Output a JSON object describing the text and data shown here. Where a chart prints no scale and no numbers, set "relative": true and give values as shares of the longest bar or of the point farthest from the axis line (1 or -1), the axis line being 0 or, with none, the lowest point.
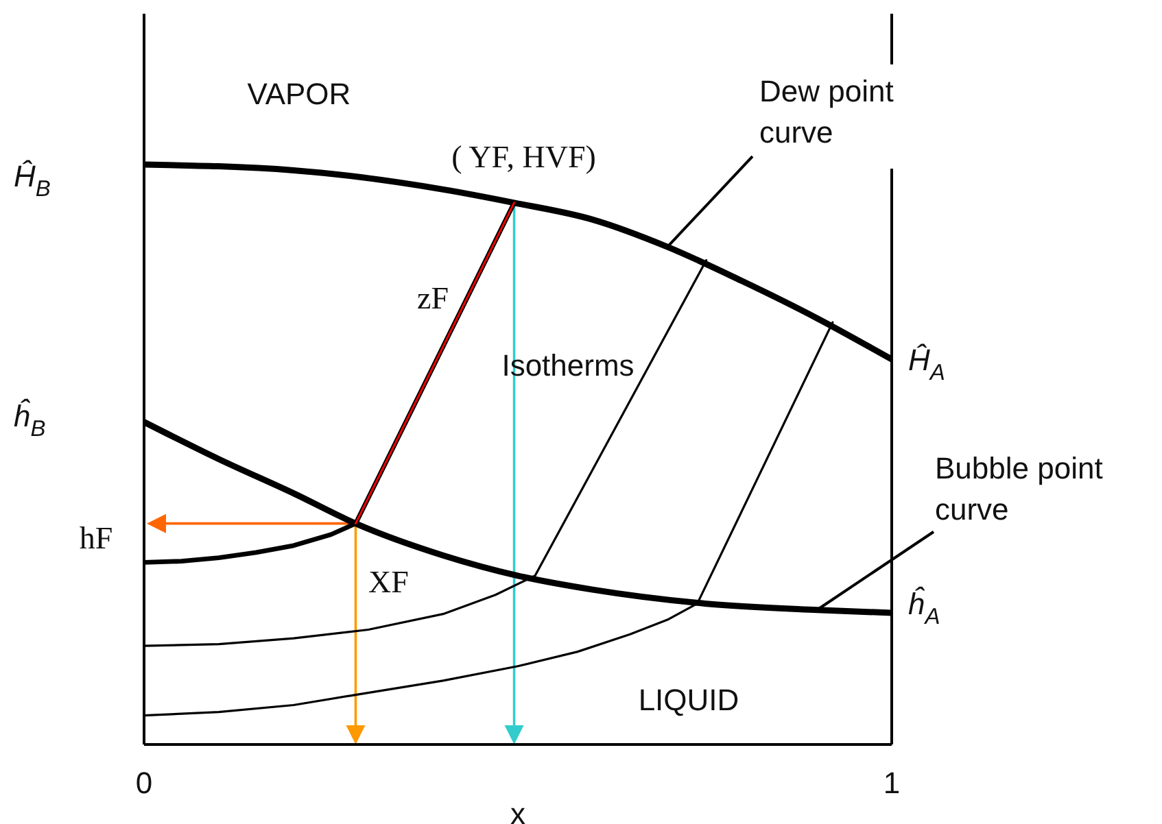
{
  "chart_data": {
    "type": "line",
    "relative": true,
    "xlabel": "x",
    "xlim": [
      0,
      1
    ],
    "xticks": [
      0,
      1
    ],
    "grid": false,
    "legend": false,
    "marker": "none",
    "line_style": "solid",
    "series": [
      {
        "color": "#000000",
        "x": [
          0,
          0.2,
          0.4,
          0.495,
          0.6,
          0.7,
          0.8,
          0.9,
          1
        ],
        "values": [
          1.0,
          0.99,
          0.957,
          0.934,
          0.905,
          0.858,
          0.799,
          0.735,
          0.664
        ]
      },
      {
        "color": "#000000",
        "x": [
          0,
          0.1,
          0.2,
          0.283,
          0.4,
          0.5,
          0.6,
          0.75,
          0.9,
          1
        ],
        "values": [
          0.556,
          0.492,
          0.433,
          0.381,
          0.326,
          0.291,
          0.267,
          0.243,
          0.232,
          0.227
        ]
      },
      {
        "color": "#000000",
        "x": [
          0,
          0.05,
          0.1,
          0.15,
          0.2,
          0.25,
          0.283,
          0.495
        ],
        "values": [
          0.314,
          0.316,
          0.322,
          0.331,
          0.343,
          0.362,
          0.381,
          0.934
        ]
      },
      {
        "color": "#000000",
        "x": [
          0,
          0.1,
          0.2,
          0.3,
          0.4,
          0.47,
          0.523,
          0.752
        ],
        "values": [
          0.17,
          0.173,
          0.183,
          0.198,
          0.225,
          0.258,
          0.291,
          0.835
        ]
      },
      {
        "color": "#000000",
        "x": [
          0,
          0.1,
          0.2,
          0.28,
          0.4,
          0.5,
          0.58,
          0.65,
          0.7,
          0.74,
          0.921
        ],
        "values": [
          0.05,
          0.056,
          0.068,
          0.085,
          0.11,
          0.135,
          0.16,
          0.19,
          0.215,
          0.243,
          0.728
        ]
      },
      {
        "color": "#ff0000",
        "x": [
          0.283,
          0.495
        ],
        "values": [
          0.381,
          0.934
        ]
      }
    ],
    "annotations": [
      "VAPOR",
      "LIQUID",
      "Isotherms",
      {
        "text": "Dew point curve",
        "x": 0.7,
        "y": 0.858
      },
      {
        "text": "Bubble point curve",
        "x": 0.9,
        "y": 0.232
      },
      {
        "text": "( YF,  HVF)",
        "x": 0.495,
        "y": 0.934
      },
      {
        "text": "zF",
        "x": 0.39,
        "y": 0.66
      },
      "hF",
      {
        "text": "XF",
        "x": 0.283,
        "y": 0.381
      },
      "Ĥ$_{B}$",
      "ĥ$_{B}$",
      {
        "text": "Ĥ$_{A}$",
        "x": 1,
        "y": 0.664
      },
      {
        "text": "ĥ$_{A}$",
        "x": 1,
        "y": 0.227
      }
    ]
  }
}
